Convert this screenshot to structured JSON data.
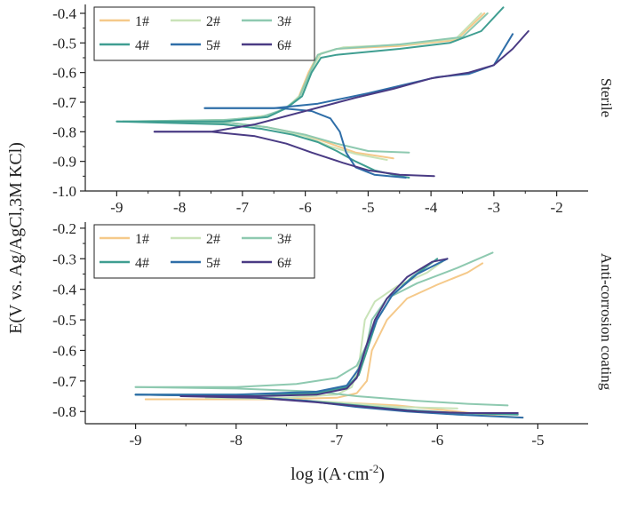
{
  "figure": {
    "shared_ylabel": "E(V vs. Ag/AgCl,3M KCl)",
    "shared_xlabel_main": "log i(A·cm",
    "shared_xlabel_sup": "-2",
    "shared_xlabel_close": ")"
  },
  "series_colors": [
    "#f5c98a",
    "#c9e3b8",
    "#8ec9b0",
    "#3f9e91",
    "#2f6ea8",
    "#4a3b84"
  ],
  "chart_data": [
    {
      "type": "line",
      "panel_label": "Sterile",
      "xlim": [
        -9.5,
        -1.5
      ],
      "ylim": [
        -1.0,
        -0.37
      ],
      "xticks": [
        -9,
        -8,
        -7,
        -6,
        -5,
        -4,
        -3,
        -2
      ],
      "yticks": [
        -1.0,
        -0.9,
        -0.8,
        -0.7,
        -0.6,
        -0.5,
        -0.4
      ],
      "legend_position": "top-left",
      "grid": false,
      "series": [
        {
          "name": "1#",
          "anodic": [
            [
              -8.6,
              -0.765
            ],
            [
              -7.2,
              -0.76
            ],
            [
              -6.6,
              -0.745
            ],
            [
              -6.3,
              -0.72
            ],
            [
              -6.1,
              -0.68
            ],
            [
              -5.95,
              -0.6
            ],
            [
              -5.8,
              -0.54
            ],
            [
              -5.5,
              -0.52
            ],
            [
              -4.5,
              -0.51
            ],
            [
              -3.6,
              -0.49
            ],
            [
              -3.15,
              -0.4
            ]
          ],
          "cathodic": [
            [
              -8.6,
              -0.765
            ],
            [
              -7.2,
              -0.77
            ],
            [
              -6.6,
              -0.785
            ],
            [
              -6.0,
              -0.81
            ],
            [
              -5.6,
              -0.84
            ],
            [
              -5.2,
              -0.87
            ],
            [
              -4.6,
              -0.89
            ]
          ]
        },
        {
          "name": "2#",
          "anodic": [
            [
              -8.9,
              -0.765
            ],
            [
              -7.2,
              -0.76
            ],
            [
              -6.6,
              -0.745
            ],
            [
              -6.3,
              -0.72
            ],
            [
              -6.05,
              -0.67
            ],
            [
              -5.9,
              -0.59
            ],
            [
              -5.75,
              -0.535
            ],
            [
              -5.4,
              -0.515
            ],
            [
              -4.4,
              -0.505
            ],
            [
              -3.6,
              -0.485
            ],
            [
              -3.2,
              -0.4
            ]
          ],
          "cathodic": [
            [
              -8.9,
              -0.765
            ],
            [
              -7.2,
              -0.77
            ],
            [
              -6.6,
              -0.785
            ],
            [
              -6.0,
              -0.815
            ],
            [
              -5.6,
              -0.85
            ],
            [
              -5.2,
              -0.875
            ],
            [
              -4.7,
              -0.895
            ]
          ]
        },
        {
          "name": "3#",
          "anodic": [
            [
              -8.9,
              -0.765
            ],
            [
              -7.3,
              -0.76
            ],
            [
              -6.7,
              -0.75
            ],
            [
              -6.35,
              -0.725
            ],
            [
              -6.1,
              -0.685
            ],
            [
              -5.95,
              -0.61
            ],
            [
              -5.8,
              -0.54
            ],
            [
              -5.5,
              -0.52
            ],
            [
              -4.5,
              -0.505
            ],
            [
              -3.5,
              -0.48
            ],
            [
              -3.1,
              -0.4
            ]
          ],
          "cathodic": [
            [
              -8.9,
              -0.765
            ],
            [
              -7.2,
              -0.77
            ],
            [
              -6.6,
              -0.785
            ],
            [
              -6.0,
              -0.81
            ],
            [
              -5.5,
              -0.84
            ],
            [
              -5.0,
              -0.865
            ],
            [
              -4.35,
              -0.87
            ]
          ]
        },
        {
          "name": "4#",
          "anodic": [
            [
              -9.0,
              -0.765
            ],
            [
              -7.3,
              -0.765
            ],
            [
              -6.6,
              -0.75
            ],
            [
              -6.3,
              -0.72
            ],
            [
              -6.05,
              -0.68
            ],
            [
              -5.9,
              -0.6
            ],
            [
              -5.75,
              -0.55
            ],
            [
              -5.5,
              -0.54
            ],
            [
              -4.5,
              -0.52
            ],
            [
              -3.7,
              -0.5
            ],
            [
              -3.2,
              -0.46
            ],
            [
              -2.85,
              -0.38
            ]
          ],
          "cathodic": [
            [
              -9.0,
              -0.765
            ],
            [
              -7.3,
              -0.775
            ],
            [
              -6.7,
              -0.79
            ],
            [
              -6.2,
              -0.81
            ],
            [
              -5.8,
              -0.835
            ],
            [
              -5.5,
              -0.865
            ],
            [
              -5.2,
              -0.9
            ],
            [
              -4.9,
              -0.93
            ],
            [
              -4.5,
              -0.95
            ],
            [
              -4.35,
              -0.955
            ]
          ]
        },
        {
          "name": "5#",
          "anodic": [
            [
              -7.6,
              -0.72
            ],
            [
              -6.5,
              -0.72
            ],
            [
              -5.8,
              -0.705
            ],
            [
              -5.0,
              -0.67
            ],
            [
              -4.4,
              -0.64
            ],
            [
              -3.9,
              -0.615
            ],
            [
              -3.4,
              -0.605
            ],
            [
              -3.0,
              -0.575
            ],
            [
              -2.7,
              -0.47
            ]
          ],
          "cathodic": [
            [
              -7.6,
              -0.72
            ],
            [
              -6.4,
              -0.72
            ],
            [
              -5.9,
              -0.73
            ],
            [
              -5.6,
              -0.755
            ],
            [
              -5.45,
              -0.8
            ],
            [
              -5.35,
              -0.87
            ],
            [
              -5.2,
              -0.92
            ],
            [
              -4.9,
              -0.945
            ],
            [
              -4.4,
              -0.955
            ]
          ]
        },
        {
          "name": "6#",
          "anodic": [
            [
              -8.4,
              -0.8
            ],
            [
              -7.5,
              -0.8
            ],
            [
              -6.8,
              -0.775
            ],
            [
              -6.0,
              -0.73
            ],
            [
              -5.2,
              -0.685
            ],
            [
              -4.6,
              -0.655
            ],
            [
              -4.0,
              -0.62
            ],
            [
              -3.4,
              -0.6
            ],
            [
              -3.0,
              -0.575
            ],
            [
              -2.7,
              -0.52
            ],
            [
              -2.45,
              -0.46
            ]
          ],
          "cathodic": [
            [
              -8.4,
              -0.8
            ],
            [
              -7.5,
              -0.8
            ],
            [
              -6.8,
              -0.815
            ],
            [
              -6.3,
              -0.84
            ],
            [
              -5.9,
              -0.87
            ],
            [
              -5.4,
              -0.905
            ],
            [
              -5.0,
              -0.93
            ],
            [
              -4.5,
              -0.945
            ],
            [
              -3.95,
              -0.95
            ]
          ]
        }
      ]
    },
    {
      "type": "line",
      "panel_label": "Anti-corrosion coating",
      "xlim": [
        -9.5,
        -4.5
      ],
      "ylim": [
        -0.84,
        -0.18
      ],
      "xticks": [
        -9,
        -8,
        -7,
        -6,
        -5
      ],
      "yticks": [
        -0.8,
        -0.7,
        -0.6,
        -0.5,
        -0.4,
        -0.3,
        -0.2
      ],
      "legend_position": "top-left",
      "grid": false,
      "series": [
        {
          "name": "1#",
          "anodic": [
            [
              -8.9,
              -0.76
            ],
            [
              -7.6,
              -0.76
            ],
            [
              -7.0,
              -0.755
            ],
            [
              -6.8,
              -0.74
            ],
            [
              -6.7,
              -0.7
            ],
            [
              -6.65,
              -0.6
            ],
            [
              -6.5,
              -0.5
            ],
            [
              -6.3,
              -0.43
            ],
            [
              -6.0,
              -0.385
            ],
            [
              -5.7,
              -0.345
            ],
            [
              -5.55,
              -0.315
            ]
          ],
          "cathodic": [
            [
              -8.9,
              -0.76
            ],
            [
              -7.6,
              -0.76
            ],
            [
              -7.0,
              -0.77
            ],
            [
              -6.4,
              -0.78
            ],
            [
              -5.8,
              -0.8
            ],
            [
              -5.4,
              -0.815
            ],
            [
              -5.15,
              -0.82
            ]
          ]
        },
        {
          "name": "2#",
          "anodic": [
            [
              -8.3,
              -0.755
            ],
            [
              -7.5,
              -0.755
            ],
            [
              -7.0,
              -0.745
            ],
            [
              -6.85,
              -0.72
            ],
            [
              -6.78,
              -0.65
            ],
            [
              -6.72,
              -0.5
            ],
            [
              -6.62,
              -0.44
            ],
            [
              -6.4,
              -0.39
            ],
            [
              -6.1,
              -0.345
            ],
            [
              -5.95,
              -0.31
            ]
          ],
          "cathodic": [
            [
              -8.3,
              -0.755
            ],
            [
              -7.5,
              -0.76
            ],
            [
              -7.0,
              -0.77
            ],
            [
              -6.4,
              -0.785
            ],
            [
              -5.8,
              -0.79
            ]
          ]
        },
        {
          "name": "3#",
          "anodic": [
            [
              -9.0,
              -0.72
            ],
            [
              -8.0,
              -0.72
            ],
            [
              -7.4,
              -0.71
            ],
            [
              -7.0,
              -0.69
            ],
            [
              -6.8,
              -0.65
            ],
            [
              -6.7,
              -0.58
            ],
            [
              -6.65,
              -0.5
            ],
            [
              -6.5,
              -0.43
            ],
            [
              -6.2,
              -0.38
            ],
            [
              -5.8,
              -0.33
            ],
            [
              -5.45,
              -0.28
            ]
          ],
          "cathodic": [
            [
              -9.0,
              -0.72
            ],
            [
              -8.0,
              -0.725
            ],
            [
              -7.2,
              -0.735
            ],
            [
              -6.8,
              -0.75
            ],
            [
              -6.2,
              -0.765
            ],
            [
              -5.7,
              -0.775
            ],
            [
              -5.3,
              -0.78
            ]
          ]
        },
        {
          "name": "4#",
          "anodic": [
            [
              -9.0,
              -0.745
            ],
            [
              -8.0,
              -0.745
            ],
            [
              -7.2,
              -0.74
            ],
            [
              -6.9,
              -0.72
            ],
            [
              -6.78,
              -0.68
            ],
            [
              -6.7,
              -0.6
            ],
            [
              -6.6,
              -0.5
            ],
            [
              -6.45,
              -0.42
            ],
            [
              -6.25,
              -0.36
            ],
            [
              -6.0,
              -0.3
            ]
          ],
          "cathodic": [
            [
              -9.0,
              -0.745
            ],
            [
              -8.0,
              -0.75
            ],
            [
              -7.3,
              -0.765
            ],
            [
              -6.8,
              -0.78
            ],
            [
              -6.3,
              -0.795
            ],
            [
              -5.8,
              -0.805
            ],
            [
              -5.2,
              -0.81
            ]
          ]
        },
        {
          "name": "5#",
          "anodic": [
            [
              -9.0,
              -0.745
            ],
            [
              -8.0,
              -0.745
            ],
            [
              -7.2,
              -0.735
            ],
            [
              -6.9,
              -0.715
            ],
            [
              -6.78,
              -0.66
            ],
            [
              -6.7,
              -0.58
            ],
            [
              -6.6,
              -0.5
            ],
            [
              -6.45,
              -0.42
            ],
            [
              -6.2,
              -0.35
            ],
            [
              -5.9,
              -0.3
            ]
          ],
          "cathodic": [
            [
              -9.0,
              -0.745
            ],
            [
              -8.0,
              -0.75
            ],
            [
              -7.3,
              -0.765
            ],
            [
              -6.8,
              -0.785
            ],
            [
              -6.3,
              -0.8
            ],
            [
              -5.8,
              -0.81
            ],
            [
              -5.15,
              -0.82
            ]
          ]
        },
        {
          "name": "6#",
          "anodic": [
            [
              -8.55,
              -0.75
            ],
            [
              -7.8,
              -0.75
            ],
            [
              -7.2,
              -0.745
            ],
            [
              -6.9,
              -0.725
            ],
            [
              -6.8,
              -0.69
            ],
            [
              -6.72,
              -0.6
            ],
            [
              -6.62,
              -0.5
            ],
            [
              -6.5,
              -0.43
            ],
            [
              -6.3,
              -0.36
            ],
            [
              -6.05,
              -0.31
            ],
            [
              -5.9,
              -0.3
            ]
          ],
          "cathodic": [
            [
              -8.55,
              -0.75
            ],
            [
              -7.8,
              -0.755
            ],
            [
              -7.2,
              -0.77
            ],
            [
              -6.7,
              -0.785
            ],
            [
              -6.2,
              -0.8
            ],
            [
              -5.7,
              -0.805
            ],
            [
              -5.2,
              -0.805
            ]
          ]
        }
      ]
    }
  ]
}
